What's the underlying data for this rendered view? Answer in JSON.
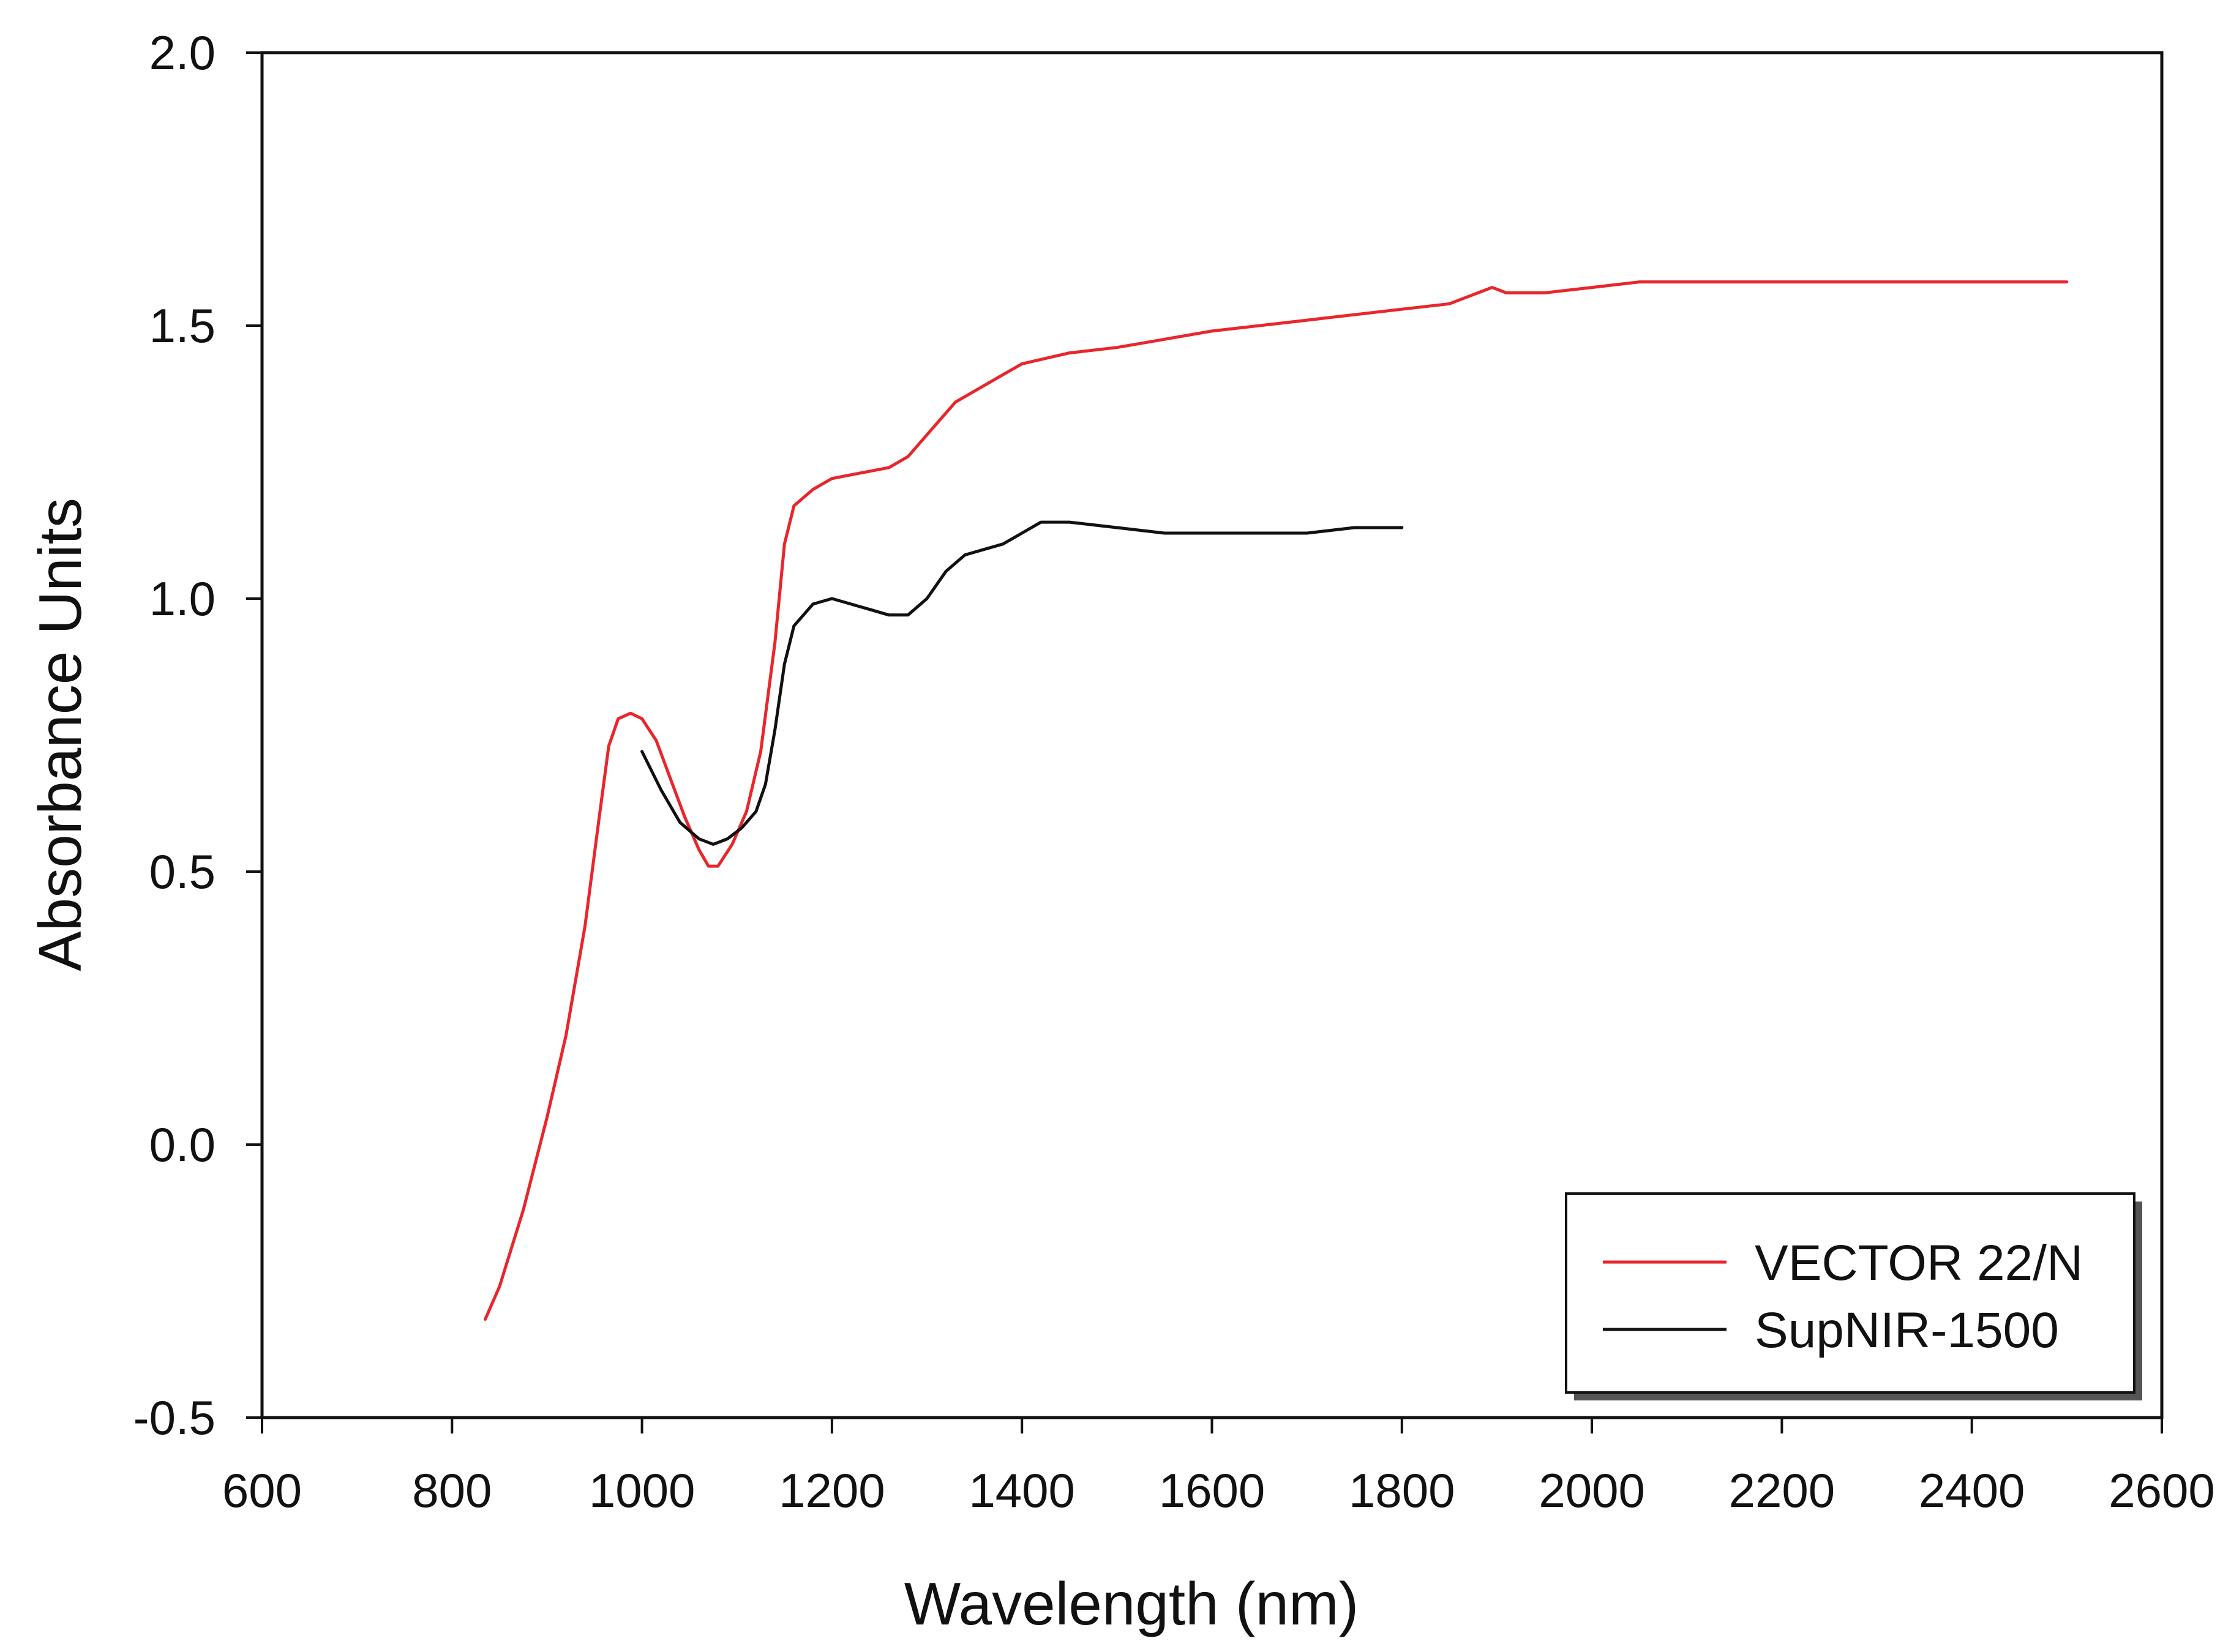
{
  "chart_data": {
    "type": "line",
    "title": "",
    "xlabel": "Wavelength (nm)",
    "ylabel": "Absorbance Units",
    "xlim": [
      600,
      2600
    ],
    "ylim": [
      -0.5,
      2.0
    ],
    "x_ticks": [
      600,
      800,
      1000,
      1200,
      1400,
      1600,
      1800,
      2000,
      2200,
      2400,
      2600
    ],
    "x_tick_labels": [
      "600",
      "800",
      "1000",
      "1200",
      "1400",
      "1600",
      "1800",
      "2000",
      "2200",
      "2400",
      "2600"
    ],
    "y_ticks": [
      -0.5,
      0.0,
      0.5,
      1.0,
      1.5,
      2.0
    ],
    "y_tick_labels": [
      "-0.5",
      "0.0",
      "0.5",
      "1.0",
      "1.5",
      "2.0"
    ],
    "grid": false,
    "legend_position": "bottom-right",
    "series": [
      {
        "name": "VECTOR 22/N",
        "color": "#e8262b",
        "x": [
          835,
          850,
          875,
          900,
          920,
          940,
          955,
          965,
          975,
          988,
          1000,
          1015,
          1030,
          1045,
          1060,
          1070,
          1080,
          1095,
          1110,
          1125,
          1140,
          1150,
          1160,
          1180,
          1200,
          1230,
          1260,
          1280,
          1300,
          1330,
          1360,
          1400,
          1450,
          1500,
          1600,
          1700,
          1800,
          1850,
          1880,
          1895,
          1910,
          1950,
          2000,
          2050,
          2100,
          2200,
          2300,
          2400,
          2500
        ],
        "values": [
          -0.32,
          -0.26,
          -0.12,
          0.05,
          0.2,
          0.4,
          0.6,
          0.73,
          0.78,
          0.79,
          0.78,
          0.74,
          0.67,
          0.6,
          0.54,
          0.51,
          0.51,
          0.55,
          0.61,
          0.72,
          0.92,
          1.1,
          1.17,
          1.2,
          1.22,
          1.23,
          1.24,
          1.26,
          1.3,
          1.36,
          1.39,
          1.43,
          1.45,
          1.46,
          1.49,
          1.51,
          1.53,
          1.54,
          1.56,
          1.57,
          1.56,
          1.56,
          1.57,
          1.58,
          1.58,
          1.58,
          1.58,
          1.58,
          1.58
        ]
      },
      {
        "name": "SupNIR-1500",
        "color": "#111111",
        "x": [
          1000,
          1020,
          1040,
          1060,
          1075,
          1090,
          1105,
          1120,
          1130,
          1140,
          1150,
          1160,
          1180,
          1200,
          1220,
          1240,
          1260,
          1280,
          1300,
          1320,
          1340,
          1360,
          1380,
          1400,
          1420,
          1450,
          1500,
          1550,
          1600,
          1650,
          1700,
          1750,
          1800
        ],
        "values": [
          0.72,
          0.65,
          0.59,
          0.56,
          0.55,
          0.56,
          0.58,
          0.61,
          0.66,
          0.76,
          0.88,
          0.95,
          0.99,
          1.0,
          0.99,
          0.98,
          0.97,
          0.97,
          1.0,
          1.05,
          1.08,
          1.09,
          1.1,
          1.12,
          1.14,
          1.14,
          1.13,
          1.12,
          1.12,
          1.12,
          1.12,
          1.13,
          1.13
        ]
      }
    ]
  }
}
